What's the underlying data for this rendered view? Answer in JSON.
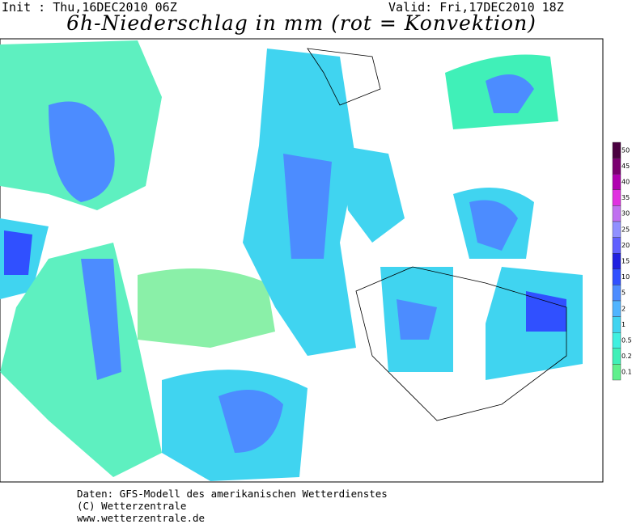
{
  "header": {
    "init": "Init : Thu,16DEC2010 06Z",
    "valid": "Valid: Fri,17DEC2010 18Z",
    "title": "6h-Niederschlag in mm (rot = Konvektion)"
  },
  "legend": {
    "levels": [
      50,
      45,
      40,
      35,
      30,
      25,
      20,
      15,
      10,
      5,
      2,
      1,
      0.5,
      0.2,
      0.1
    ],
    "colors": [
      "#4a0040",
      "#7a0070",
      "#b000b0",
      "#e030e0",
      "#c070f0",
      "#9090ff",
      "#6060ff",
      "#2020e0",
      "#3050ff",
      "#4c8cff",
      "#50b4ff",
      "#40d4f0",
      "#40f0e0",
      "#40f0b8",
      "#60f08c"
    ]
  },
  "footer": {
    "lines": [
      "Daten: GFS-Modell des amerikanischen Wetterdienstes",
      "(C) Wetterzentrale",
      "www.wetterzentrale.de"
    ]
  }
}
